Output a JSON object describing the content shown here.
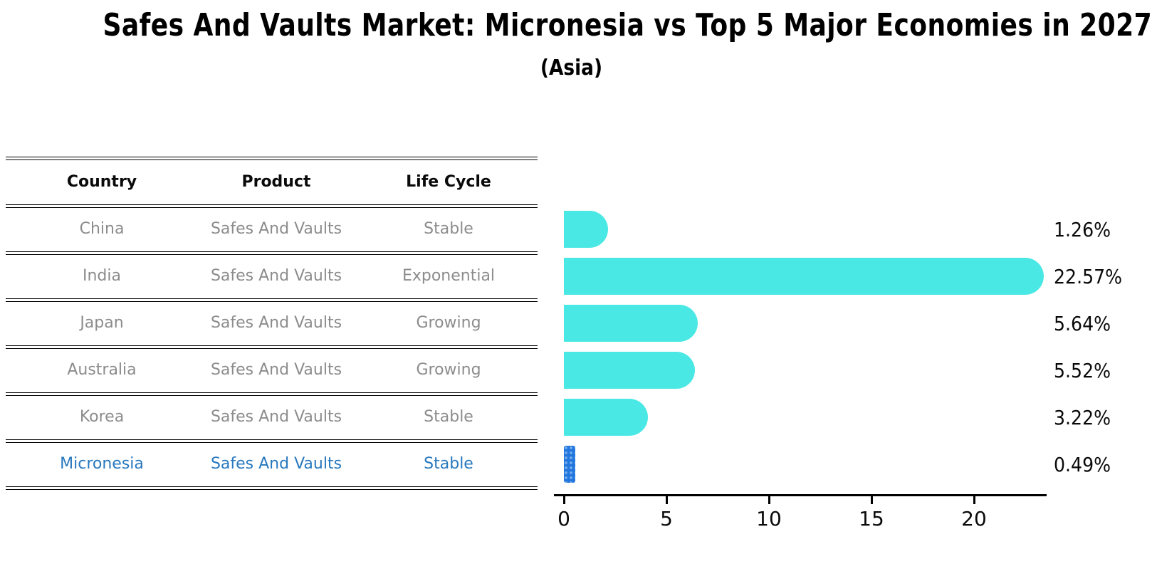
{
  "title": "Safes And Vaults Market: Micronesia vs Top 5 Major Economies in 2027",
  "subtitle": "(Asia)",
  "table": {
    "headers": [
      "Country",
      "Product",
      "Life Cycle"
    ],
    "rows": [
      {
        "country": "China",
        "product": "Safes And Vaults",
        "life_cycle": "Stable",
        "highlighted": false
      },
      {
        "country": "India",
        "product": "Safes And Vaults",
        "life_cycle": "Exponential",
        "highlighted": false
      },
      {
        "country": "Japan",
        "product": "Safes And Vaults",
        "life_cycle": "Growing",
        "highlighted": false
      },
      {
        "country": "Australia",
        "product": "Safes And Vaults",
        "life_cycle": "Growing",
        "highlighted": false
      },
      {
        "country": "Korea",
        "product": "Safes And Vaults",
        "life_cycle": "Stable",
        "highlighted": false
      },
      {
        "country": "Micronesia",
        "product": "Safes And Vaults",
        "life_cycle": "Stable",
        "highlighted": true
      }
    ]
  },
  "chart_data": {
    "type": "bar",
    "orientation": "horizontal",
    "title": "Safes And Vaults Market: Micronesia vs Top 5 Major Economies in 2027",
    "subtitle": "(Asia)",
    "categories": [
      "China",
      "India",
      "Japan",
      "Australia",
      "Korea",
      "Micronesia"
    ],
    "values": [
      1.26,
      22.57,
      5.64,
      5.52,
      3.22,
      0.49
    ],
    "value_labels": [
      "1.26%",
      "22.57%",
      "5.64%",
      "5.52%",
      "3.22%",
      "0.49%"
    ],
    "xlabel": "",
    "ylabel": "",
    "x_ticks": [
      0,
      5,
      10,
      15,
      20
    ],
    "xlim": [
      0,
      23.5
    ],
    "grid": false,
    "legend": false,
    "bar_color": "#4AE8E4",
    "highlight_color": "#2277DF",
    "highlight_index": 5
  },
  "colors": {
    "bar": "#4AE8E4",
    "highlight_bar": "#2277DF",
    "highlight_text": "#2878BE",
    "row_text": "#8C8C8C",
    "header_text": "#0A0A0A"
  }
}
